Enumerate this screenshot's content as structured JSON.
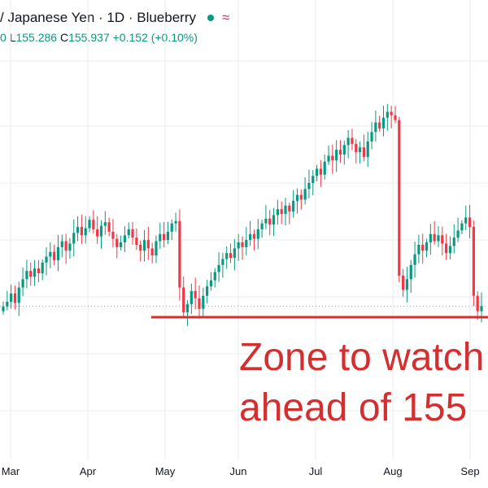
{
  "header": {
    "title": "/ Japanese Yen · 1D · Blueberry",
    "wave_icon": "≈",
    "ohlc_low_label": "L",
    "ohlc_low": "155.286",
    "ohlc_close_label": "C",
    "ohlc_close": "155.937",
    "ohlc_change": "+0.152",
    "ohlc_change_pct": "(+0.10%)",
    "ohlc_prefix": "0"
  },
  "annotation": {
    "line1": "Zone to watch",
    "line2": "ahead of 155"
  },
  "colors": {
    "up": "#089981",
    "down": "#f23645",
    "zone_line": "#d32f2f",
    "grid": "#ebebeb"
  },
  "chart_data": {
    "type": "candlestick",
    "months": [
      "Mar",
      "Apr",
      "May",
      "Jun",
      "Jul",
      "Aug",
      "Sep"
    ],
    "support_level": 155.0,
    "last_close": 155.937,
    "approx_closes": [
      155.9,
      156.3,
      157.0,
      156.2,
      157.5,
      158.2,
      158.9,
      158.4,
      159.1,
      158.7,
      159.6,
      160.1,
      160.5,
      159.8,
      160.9,
      161.4,
      160.6,
      161.2,
      162.1,
      162.6,
      161.9,
      162.5,
      163.2,
      162.4,
      161.8,
      162.7,
      163.0,
      162.2,
      161.6,
      160.9,
      161.3,
      161.9,
      162.4,
      161.7,
      161.1,
      160.6,
      161.5,
      160.8,
      160.2,
      161.4,
      162.0,
      161.5,
      162.2,
      162.9,
      163.1,
      157.5,
      155.4,
      156.1,
      157.2,
      156.6,
      155.7,
      156.8,
      157.6,
      158.1,
      158.8,
      159.4,
      159.9,
      160.4,
      160.0,
      160.8,
      161.3,
      160.9,
      161.5,
      162.0,
      161.6,
      162.4,
      162.9,
      163.3,
      162.8,
      163.6,
      164.1,
      163.7,
      164.4,
      163.9,
      164.8,
      165.3,
      164.9,
      165.8,
      166.3,
      166.9,
      167.5,
      167.0,
      168.1,
      168.6,
      168.2,
      169.1,
      168.7,
      169.5,
      170.1,
      169.6,
      168.9,
      169.3,
      168.5,
      169.8,
      170.6,
      171.4,
      170.9,
      171.8,
      172.3,
      172.0,
      171.6,
      158.5,
      157.3,
      158.2,
      159.4,
      160.3,
      161.1,
      160.6,
      161.3,
      162.0,
      161.4,
      161.9,
      161.2,
      160.4,
      161.0,
      161.7,
      162.3,
      162.9,
      163.4,
      162.6,
      156.8,
      155.5,
      155.937
    ]
  }
}
